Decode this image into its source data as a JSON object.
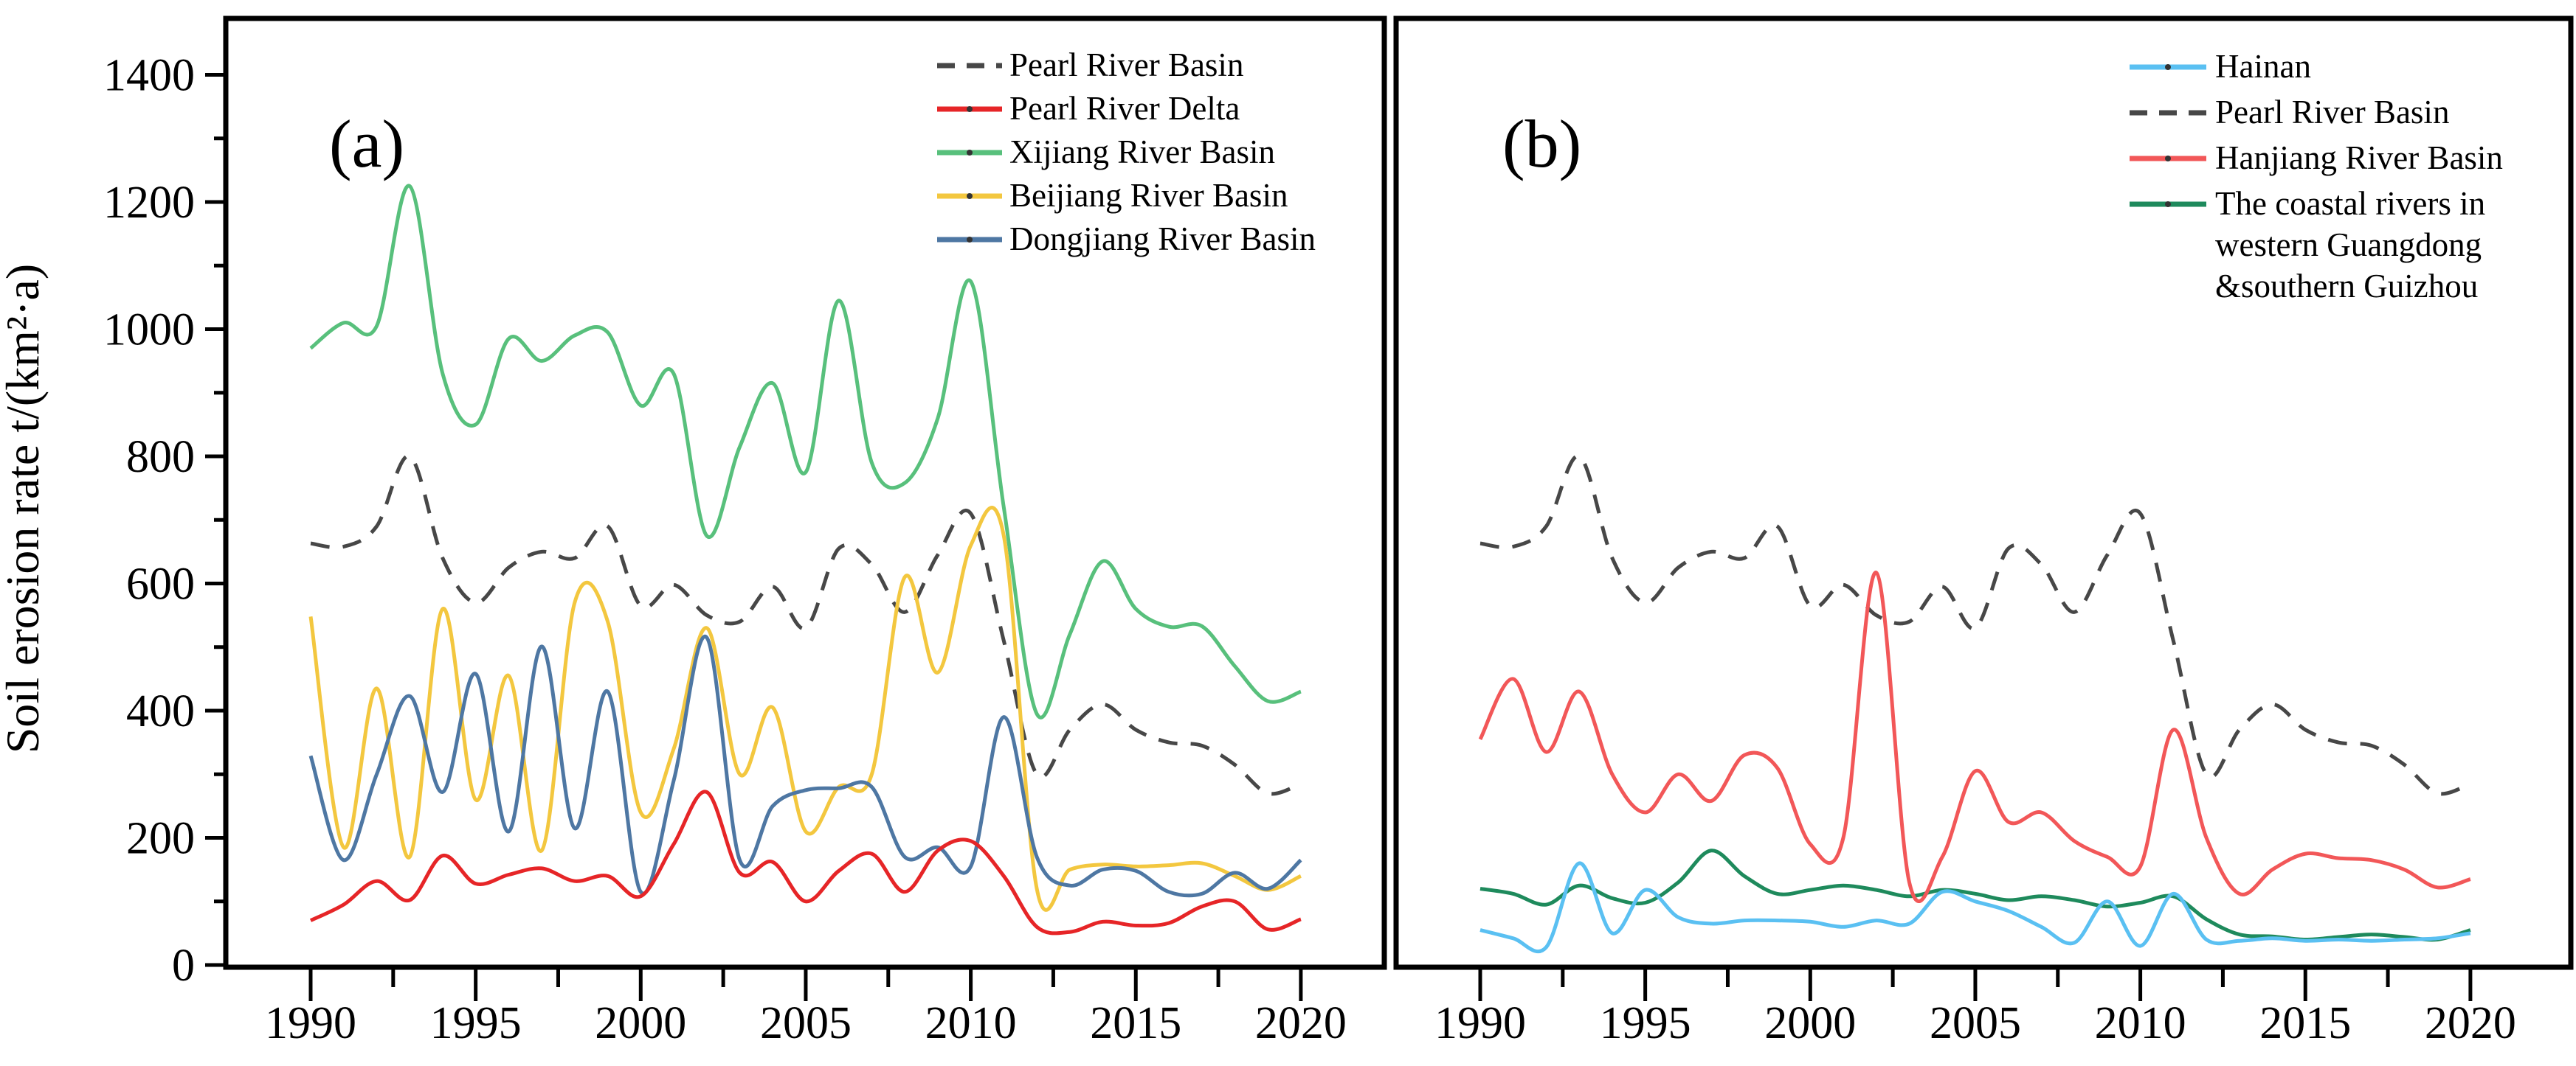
{
  "chart_data": {
    "type": "line",
    "line_style": "smooth-spline",
    "grid": false,
    "ylabel": "Soil erosion rate  t/(km²·a)",
    "xlabel": "",
    "ylim": [
      0,
      1400
    ],
    "y_ticks": [
      0,
      200,
      400,
      600,
      800,
      1000,
      1200,
      1400
    ],
    "x_ticks": [
      1990,
      1995,
      2000,
      2005,
      2010,
      2015,
      2020
    ],
    "x": [
      1990,
      1991,
      1992,
      1993,
      1994,
      1995,
      1996,
      1997,
      1998,
      1999,
      2000,
      2001,
      2002,
      2003,
      2004,
      2005,
      2006,
      2007,
      2008,
      2009,
      2010,
      2011,
      2012,
      2013,
      2014,
      2015,
      2016,
      2017,
      2018,
      2019,
      2020
    ],
    "colors": {
      "pearl_river_basin": "#474747",
      "pearl_river_delta": "#e62527",
      "xijiang": "#58c07c",
      "beijiang": "#f3c73f",
      "dongjiang": "#4e77a3",
      "hainan": "#5ac0f2",
      "hanjiang": "#f25758",
      "coastal": "#1e8a5c"
    },
    "panels": [
      {
        "label": "(a)",
        "legend_position": "top-right-inside",
        "series": [
          {
            "id": "pearl_river_basin_a",
            "name": "Pearl River Basin",
            "color": "#474747",
            "dash": true,
            "values": [
              663,
              658,
              690,
              800,
              640,
              570,
              625,
              650,
              640,
              690,
              565,
              598,
              550,
              540,
              595,
              530,
              655,
              630,
              555,
              645,
              710,
              510,
              300,
              370,
              410,
              370,
              350,
              345,
              315,
              270,
              285
            ]
          },
          {
            "id": "pearl_river_delta",
            "name": "Pearl River Delta",
            "color": "#e62527",
            "dash": false,
            "values": [
              70,
              95,
              132,
              102,
              172,
              128,
              142,
              152,
              132,
              140,
              108,
              190,
              272,
              145,
              162,
              100,
              148,
              175,
              115,
              180,
              195,
              140,
              60,
              52,
              68,
              62,
              66,
              92,
              100,
              56,
              72
            ]
          },
          {
            "id": "xijiang",
            "name": "Xijiang River Basin",
            "color": "#58c07c",
            "dash": false,
            "values": [
              970,
              1010,
              1005,
              1225,
              930,
              850,
              985,
              950,
              990,
              995,
              880,
              930,
              675,
              815,
              915,
              775,
              1045,
              790,
              758,
              860,
              1075,
              720,
              395,
              520,
              635,
              560,
              532,
              533,
              470,
              415,
              430
            ]
          },
          {
            "id": "beijiang",
            "name": "Beijiang River Basin",
            "color": "#f3c73f",
            "dash": false,
            "values": [
              548,
              185,
              435,
              170,
              560,
              260,
              455,
              180,
              570,
              540,
              240,
              340,
              530,
              300,
              405,
              210,
              280,
              300,
              610,
              460,
              660,
              675,
              120,
              150,
              158,
              155,
              157,
              160,
              140,
              118,
              140
            ]
          },
          {
            "id": "dongjiang",
            "name": "Dongjiang River Basin",
            "color": "#4e77a3",
            "dash": false,
            "values": [
              329,
              165,
              300,
              423,
              272,
              458,
              210,
              501,
              215,
              430,
              115,
              290,
              515,
              165,
              250,
              275,
              278,
              280,
              170,
              185,
              155,
              390,
              170,
              125,
              150,
              148,
              115,
              112,
              145,
              120,
              165
            ]
          }
        ]
      },
      {
        "label": "(b)",
        "legend_position": "top-right-inside",
        "series": [
          {
            "id": "hainan",
            "name": "Hainan",
            "color": "#5ac0f2",
            "dash": false,
            "values": [
              55,
              42,
              28,
              160,
              50,
              118,
              75,
              65,
              70,
              70,
              68,
              60,
              70,
              65,
              115,
              100,
              85,
              60,
              35,
              100,
              30,
              112,
              40,
              38,
              42,
              38,
              40,
              38,
              40,
              42,
              50
            ]
          },
          {
            "id": "pearl_river_basin_b",
            "name": "Pearl River Basin",
            "color": "#474747",
            "dash": true,
            "values": [
              663,
              658,
              690,
              800,
              640,
              570,
              625,
              650,
              640,
              690,
              565,
              598,
              550,
              540,
              595,
              530,
              655,
              630,
              555,
              645,
              710,
              510,
              300,
              370,
              410,
              370,
              350,
              345,
              315,
              270,
              285
            ]
          },
          {
            "id": "hanjiang",
            "name": "Hanjiang River Basin",
            "color": "#f25758",
            "dash": false,
            "values": [
              355,
              450,
              335,
              430,
              300,
              240,
              300,
              258,
              330,
              310,
              190,
              200,
              617,
              130,
              170,
              305,
              225,
              240,
              195,
              170,
              155,
              370,
              200,
              112,
              150,
              175,
              168,
              165,
              150,
              122,
              135
            ]
          },
          {
            "id": "coastal",
            "name": "The coastal rivers in western Guangdong &southern Guizhou",
            "color": "#1e8a5c",
            "dash": false,
            "name_lines": [
              "The coastal rivers in",
              "western Guangdong",
              "&southern Guizhou"
            ],
            "values": [
              120,
              112,
              95,
              125,
              105,
              98,
              130,
              180,
              140,
              112,
              118,
              125,
              118,
              108,
              118,
              112,
              102,
              108,
              102,
              92,
              98,
              108,
              72,
              48,
              45,
              40,
              44,
              48,
              44,
              40,
              55
            ]
          }
        ]
      }
    ]
  }
}
